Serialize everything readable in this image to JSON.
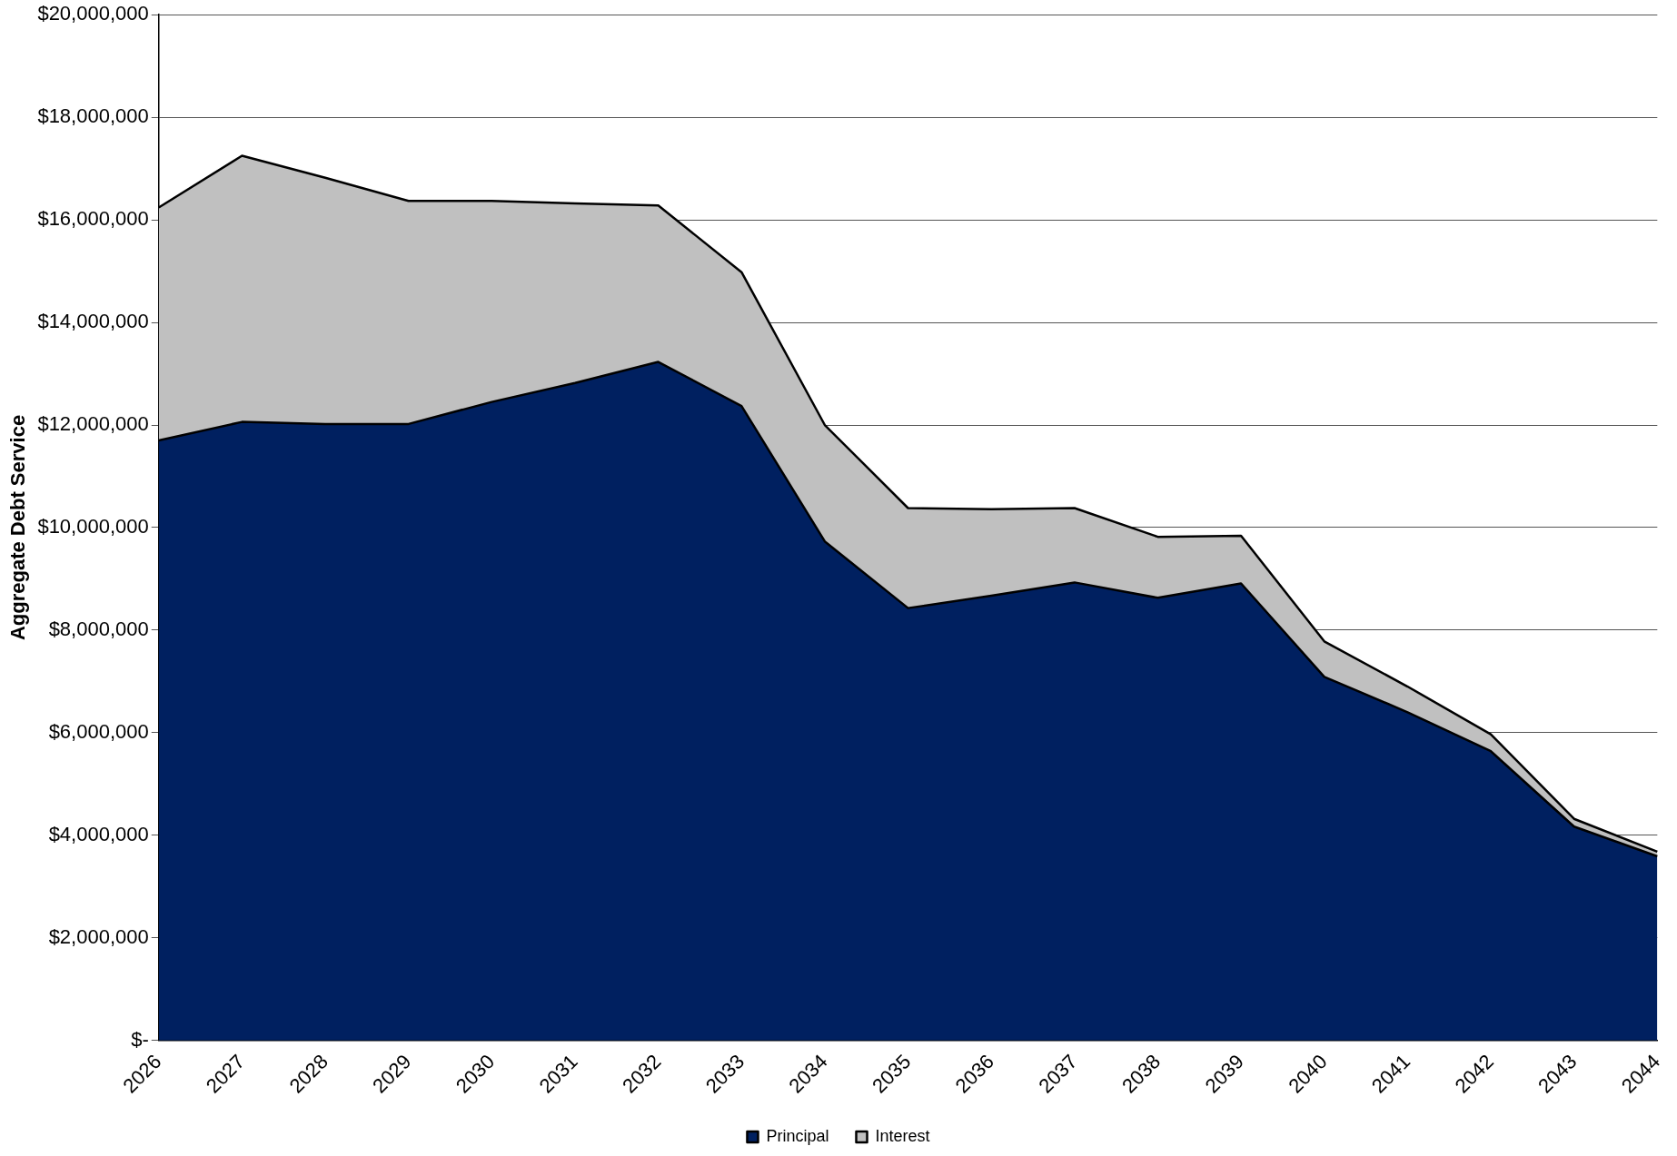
{
  "chart_data": {
    "type": "area",
    "stacked": true,
    "ylabel": "Aggregate Debt Service",
    "categories": [
      "2026",
      "2027",
      "2028",
      "2029",
      "2030",
      "2031",
      "2032",
      "2033",
      "2034",
      "2035",
      "2036",
      "2037",
      "2038",
      "2039",
      "2040",
      "2041",
      "2042",
      "2043",
      "2044"
    ],
    "series": [
      {
        "name": "Principal",
        "color": "#002060",
        "values": [
          11700000,
          12060000,
          12020000,
          12020000,
          12450000,
          12820000,
          13230000,
          12370000,
          9730000,
          8430000,
          8670000,
          8930000,
          8630000,
          8910000,
          7090000,
          6400000,
          5640000,
          4170000,
          3590000
        ]
      },
      {
        "name": "Interest",
        "color": "#c0c0c0",
        "values": [
          4540000,
          5190000,
          4800000,
          4350000,
          3920000,
          3500000,
          3050000,
          2610000,
          2270000,
          1950000,
          1690000,
          1450000,
          1190000,
          930000,
          690000,
          500000,
          330000,
          150000,
          90000
        ]
      }
    ],
    "ylim": [
      0,
      20000000
    ],
    "yticks": [
      {
        "value": 0,
        "label": "$-"
      },
      {
        "value": 2000000,
        "label": "$2,000,000"
      },
      {
        "value": 4000000,
        "label": "$4,000,000"
      },
      {
        "value": 6000000,
        "label": "$6,000,000"
      },
      {
        "value": 8000000,
        "label": "$8,000,000"
      },
      {
        "value": 10000000,
        "label": "$10,000,000"
      },
      {
        "value": 12000000,
        "label": "$12,000,000"
      },
      {
        "value": 14000000,
        "label": "$14,000,000"
      },
      {
        "value": 16000000,
        "label": "$16,000,000"
      },
      {
        "value": 18000000,
        "label": "$18,000,000"
      },
      {
        "value": 20000000,
        "label": "$20,000,000"
      }
    ],
    "grid": "y",
    "legend": "bottom",
    "marker": "none"
  }
}
